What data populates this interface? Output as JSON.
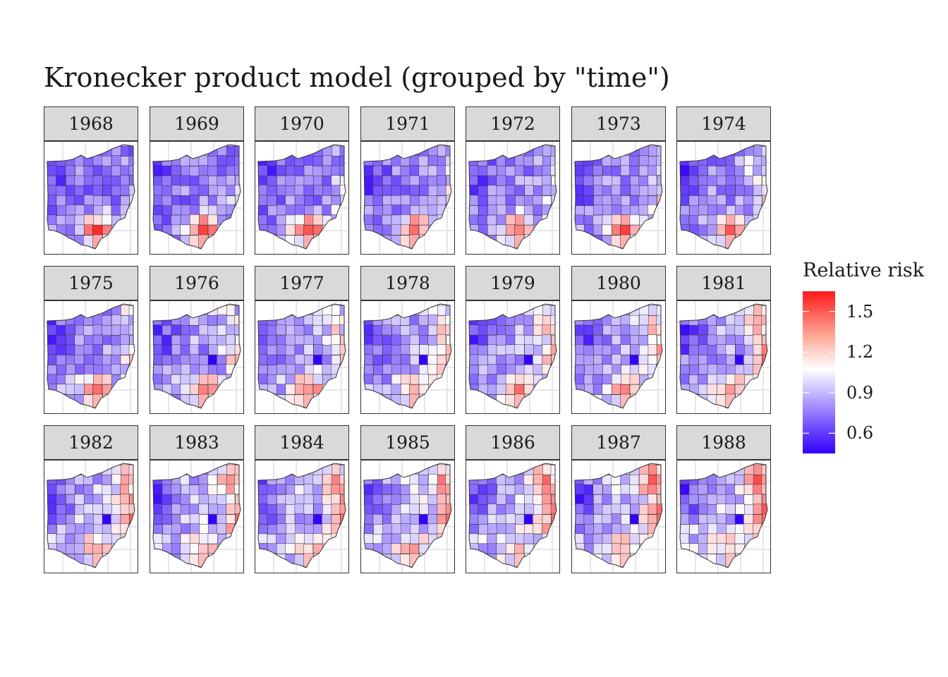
{
  "title": "Kronecker product model (grouped by \"time\")",
  "facets": [
    "1968",
    "1969",
    "1970",
    "1971",
    "1972",
    "1973",
    "1974",
    "1975",
    "1976",
    "1977",
    "1978",
    "1979",
    "1980",
    "1981",
    "1982",
    "1983",
    "1984",
    "1985",
    "1986",
    "1987",
    "1988"
  ],
  "legend": {
    "title": "Relative risk",
    "ticks": [
      "1.5",
      "1.2",
      "0.9",
      "0.6"
    ],
    "tick_values": [
      1.5,
      1.2,
      0.9,
      0.6
    ],
    "range": [
      0.45,
      1.65
    ],
    "colors": {
      "low": "#3300ff",
      "mid": "#ffffff",
      "high": "#ff1a1a"
    }
  },
  "map_style": {
    "grid": "on",
    "county_border": "#333333"
  }
}
